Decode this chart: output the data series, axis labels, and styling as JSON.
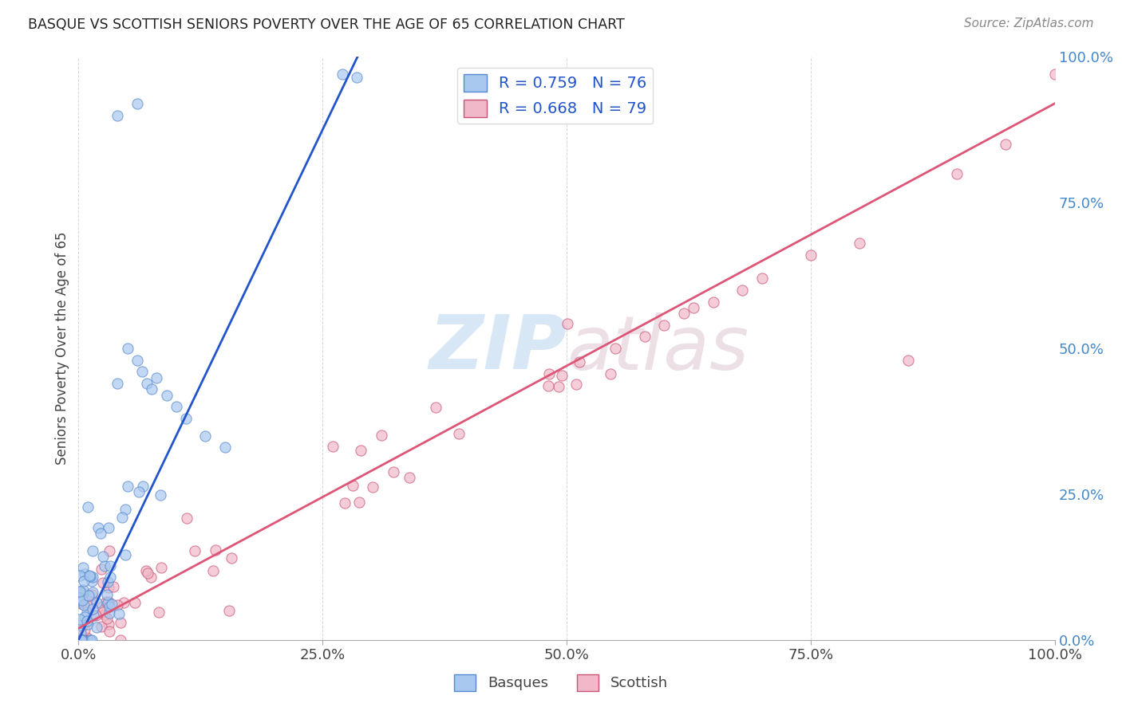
{
  "title": "BASQUE VS SCOTTISH SENIORS POVERTY OVER THE AGE OF 65 CORRELATION CHART",
  "source": "Source: ZipAtlas.com",
  "ylabel": "Seniors Poverty Over the Age of 65",
  "basque_R": 0.759,
  "basque_N": 76,
  "scottish_R": 0.668,
  "scottish_N": 79,
  "basque_fill_color": "#a8c8f0",
  "scottish_fill_color": "#f0b8c8",
  "basque_edge_color": "#5588cc",
  "scottish_edge_color": "#cc5577",
  "basque_line_color": "#2255cc",
  "scottish_line_color": "#dd5577",
  "watermark_color": "#c0d8f0",
  "right_axis_color": "#4488cc",
  "background_color": "#ffffff",
  "grid_color": "#cccccc",
  "title_color": "#222222",
  "source_color": "#888888",
  "xlabel_color": "#444444",
  "ylabel_color": "#444444",
  "xlim": [
    0,
    1
  ],
  "ylim": [
    0,
    1
  ],
  "xticks": [
    0.0,
    0.25,
    0.5,
    0.75,
    1.0
  ],
  "yticks_right": [
    0.0,
    0.25,
    0.5,
    0.75,
    1.0
  ]
}
